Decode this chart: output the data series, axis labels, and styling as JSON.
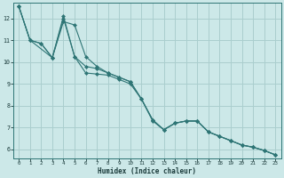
{
  "xlabel": "Humidex (Indice chaleur)",
  "background_color": "#cce8e8",
  "grid_color": "#aacece",
  "line_color": "#2e7575",
  "xlim": [
    -0.5,
    23.5
  ],
  "ylim": [
    5.6,
    12.7
  ],
  "xticks": [
    0,
    1,
    2,
    3,
    4,
    5,
    6,
    7,
    8,
    9,
    10,
    11,
    12,
    13,
    14,
    15,
    16,
    17,
    18,
    19,
    20,
    21,
    22,
    23
  ],
  "yticks": [
    6,
    7,
    8,
    9,
    10,
    11,
    12
  ],
  "series1_x": [
    0,
    1,
    2,
    3,
    4,
    5,
    6,
    7,
    8,
    9,
    10,
    11,
    12,
    13,
    14,
    15,
    16,
    17,
    18,
    19,
    20,
    21,
    22,
    23
  ],
  "series1_y": [
    12.55,
    11.0,
    10.85,
    10.2,
    12.0,
    10.25,
    9.5,
    9.45,
    9.4,
    9.2,
    9.0,
    8.3,
    7.3,
    6.9,
    7.2,
    7.3,
    7.3,
    6.8,
    6.6,
    6.4,
    6.2,
    6.1,
    5.95,
    5.75
  ],
  "series2_x": [
    0,
    1,
    2,
    3,
    4,
    5,
    6,
    7,
    8,
    9,
    10,
    11,
    12,
    13,
    14,
    15,
    16,
    17,
    18,
    19,
    20,
    21,
    22,
    23
  ],
  "series2_y": [
    12.55,
    11.0,
    10.85,
    10.2,
    11.85,
    11.7,
    10.25,
    9.8,
    9.5,
    9.3,
    9.1,
    8.3,
    7.35,
    6.9,
    7.2,
    7.3,
    7.3,
    6.8,
    6.6,
    6.4,
    6.2,
    6.1,
    5.95,
    5.75
  ],
  "series3_x": [
    0,
    1,
    3,
    4,
    5,
    6,
    7,
    8,
    9,
    10,
    11,
    12,
    13,
    14,
    15,
    16,
    17,
    18,
    19,
    20,
    21,
    22,
    23
  ],
  "series3_y": [
    12.55,
    11.0,
    10.2,
    12.1,
    10.25,
    9.8,
    9.7,
    9.5,
    9.3,
    9.1,
    8.3,
    7.35,
    6.9,
    7.2,
    7.3,
    7.3,
    6.8,
    6.6,
    6.4,
    6.2,
    6.1,
    5.95,
    5.75
  ]
}
